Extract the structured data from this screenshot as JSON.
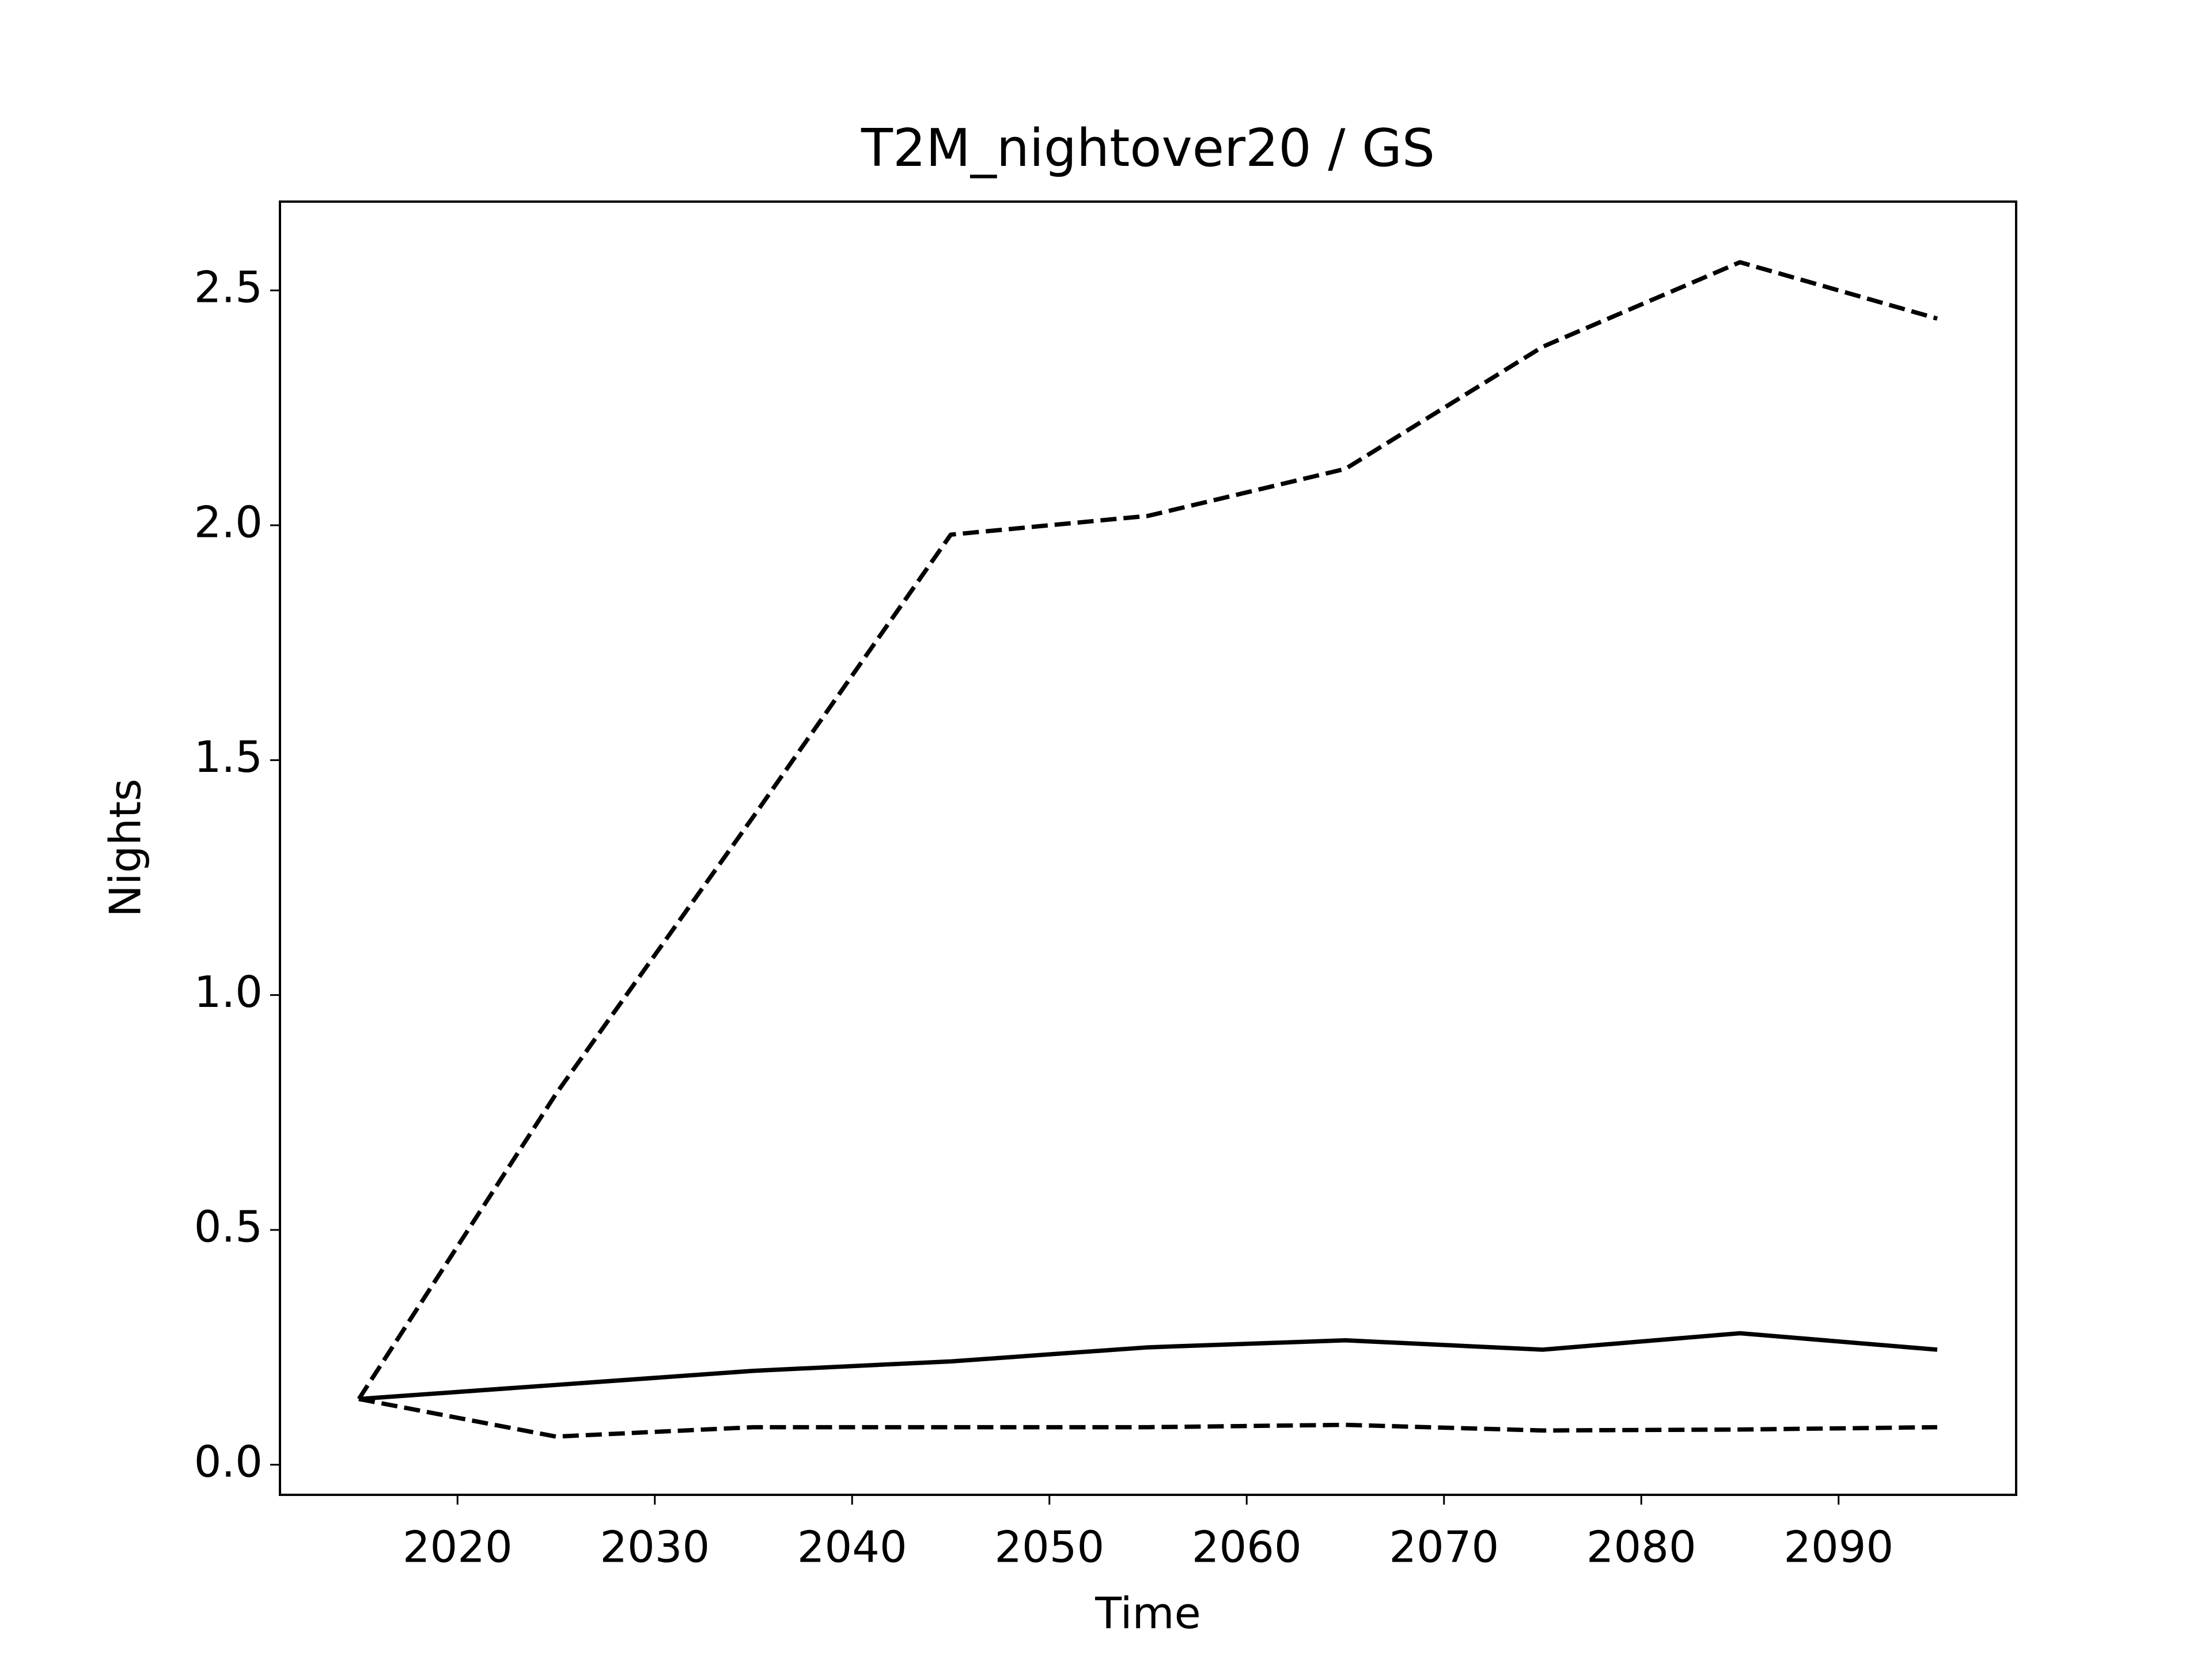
{
  "chart_data": {
    "type": "line",
    "title": "T2M_nightover20 / GS",
    "x_label": "Time",
    "y_label": "Nights",
    "x": [
      2015,
      2025,
      2035,
      2045,
      2055,
      2065,
      2075,
      2085,
      2095
    ],
    "series": [
      {
        "color": "#000000",
        "dashed": false,
        "values": [
          0.14,
          0.17,
          0.2,
          0.22,
          0.25,
          0.265,
          0.245,
          0.28,
          0.245
        ]
      },
      {
        "color": "#000000",
        "dashed": true,
        "values": [
          0.14,
          0.79,
          1.38,
          1.98,
          2.02,
          2.12,
          2.38,
          2.56,
          2.44
        ]
      },
      {
        "color": "#000000",
        "dashed": true,
        "values": [
          0.14,
          0.06,
          0.08,
          0.08,
          0.08,
          0.085,
          0.073,
          0.075,
          0.08
        ]
      }
    ],
    "xlim": [
      2011,
      2099
    ],
    "xticks": [
      2020,
      2030,
      2040,
      2050,
      2060,
      2070,
      2080,
      2090
    ],
    "ylim": [
      -0.064,
      2.689
    ],
    "yticks": [
      {
        "value": 0,
        "label": "0.0"
      },
      0.5,
      {
        "value": 1,
        "label": "1.0"
      },
      1.5,
      {
        "value": 2,
        "label": "2.0"
      },
      2.5
    ],
    "grid": false
  }
}
